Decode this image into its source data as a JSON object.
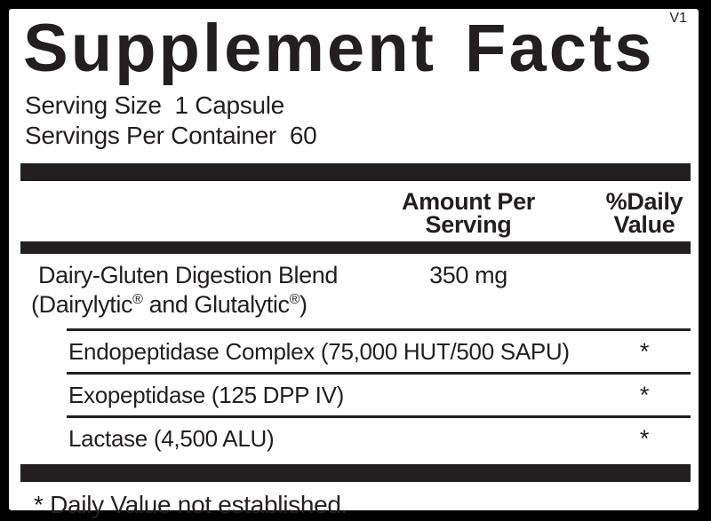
{
  "version": "V1",
  "title": "Supplement Facts",
  "serving": {
    "size": "Serving Size  1 Capsule",
    "per_container": "Servings Per Container  60"
  },
  "columns": {
    "amount_line1": "Amount Per",
    "amount_line2": "Serving",
    "daily_line1": "%Daily",
    "daily_line2": "Value"
  },
  "blend": {
    "name": "Dairy-Gluten Digestion Blend",
    "amount": "350 mg",
    "detail": {
      "p1": "(Dairylytic",
      "reg1": "®",
      "p2": " and Glutalytic",
      "reg2": "®",
      "p3": ")"
    }
  },
  "sub_rows": [
    {
      "label": "Endopeptidase Complex (75,000 HUT/500 SAPU)",
      "daily": "*"
    },
    {
      "label": "Exopeptidase (125 DPP IV)",
      "daily": "*"
    },
    {
      "label": "Lactase (4,500 ALU)",
      "daily": "*"
    }
  ],
  "footnote": "* Daily Value not established.",
  "colors": {
    "ink": "#231f20",
    "panel_background": "#ffffff",
    "page_background": "#000000"
  }
}
